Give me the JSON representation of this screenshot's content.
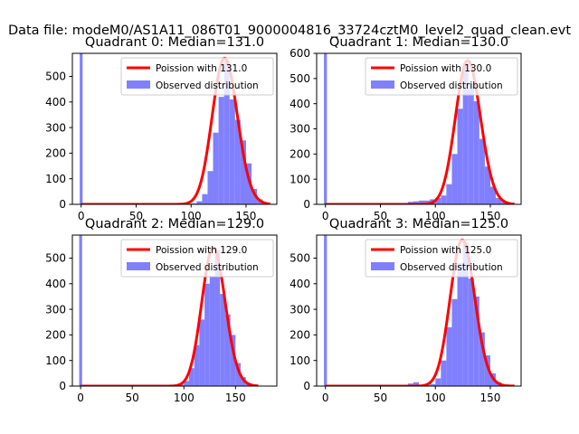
{
  "figure": {
    "suptitle": "Data file: modeM0/AS1A11_086T01_9000004816_33724cztM0_level2_quad_clean.evt",
    "hist_color": "#8080ff",
    "curve_color": "#ff0000",
    "legend_curve_prefix": "Poission with",
    "legend_hist_label": "Observed distribution"
  },
  "chart_data": [
    {
      "type": "bar",
      "title": "Quadrant 0: Median=131.0",
      "median": 131.0,
      "legend": [
        "Poission with 131.0",
        "Observed distribution"
      ],
      "xlim": [
        -8,
        178
      ],
      "ylim": [
        0,
        590
      ],
      "xticks": [
        0,
        50,
        100,
        150
      ],
      "yticks": [
        0,
        100,
        200,
        300,
        400,
        500
      ],
      "zero_spike": {
        "x": 0,
        "value": 590
      },
      "hist_bins": [
        [
          80,
          2
        ],
        [
          85,
          2
        ],
        [
          95,
          2
        ],
        [
          100,
          4
        ],
        [
          105,
          12
        ],
        [
          110,
          40
        ],
        [
          115,
          130
        ],
        [
          120,
          280
        ],
        [
          125,
          420
        ],
        [
          130,
          560
        ],
        [
          135,
          410
        ],
        [
          140,
          330
        ],
        [
          145,
          250
        ],
        [
          150,
          160
        ],
        [
          155,
          60
        ],
        [
          160,
          20
        ],
        [
          165,
          6
        ],
        [
          170,
          2
        ]
      ]
    },
    {
      "type": "bar",
      "title": "Quadrant 1: Median=130.0",
      "median": 130.0,
      "legend": [
        "Poission with 130.0",
        "Observed distribution"
      ],
      "xlim": [
        -8,
        178
      ],
      "ylim": [
        0,
        600
      ],
      "xticks": [
        0,
        50,
        100,
        150
      ],
      "yticks": [
        0,
        100,
        200,
        300,
        400,
        500,
        600
      ],
      "zero_spike": {
        "x": 0,
        "value": 600
      },
      "hist_bins": [
        [
          75,
          10
        ],
        [
          80,
          12
        ],
        [
          85,
          15
        ],
        [
          90,
          15
        ],
        [
          95,
          20
        ],
        [
          100,
          25
        ],
        [
          105,
          35
        ],
        [
          110,
          80
        ],
        [
          115,
          200
        ],
        [
          120,
          380
        ],
        [
          125,
          560
        ],
        [
          130,
          480
        ],
        [
          135,
          410
        ],
        [
          140,
          260
        ],
        [
          145,
          150
        ],
        [
          150,
          70
        ],
        [
          155,
          25
        ],
        [
          160,
          10
        ],
        [
          165,
          4
        ]
      ]
    },
    {
      "type": "bar",
      "title": "Quadrant 2: Median=129.0",
      "median": 129.0,
      "legend": [
        "Poission with 129.0",
        "Observed distribution"
      ],
      "xlim": [
        -8,
        190
      ],
      "ylim": [
        0,
        590
      ],
      "xticks": [
        0,
        50,
        100,
        150
      ],
      "yticks": [
        0,
        100,
        200,
        300,
        400,
        500
      ],
      "zero_spike": {
        "x": 0,
        "value": 590
      },
      "hist_bins": [
        [
          90,
          4
        ],
        [
          95,
          6
        ],
        [
          100,
          20
        ],
        [
          105,
          70
        ],
        [
          110,
          160
        ],
        [
          115,
          260
        ],
        [
          120,
          400
        ],
        [
          125,
          430
        ],
        [
          130,
          530
        ],
        [
          135,
          360
        ],
        [
          140,
          280
        ],
        [
          145,
          200
        ],
        [
          150,
          90
        ],
        [
          155,
          35
        ],
        [
          160,
          12
        ],
        [
          165,
          4
        ]
      ]
    },
    {
      "type": "bar",
      "title": "Quadrant 3: Median=125.0",
      "median": 125.0,
      "legend": [
        "Poission with 125.0",
        "Observed distribution"
      ],
      "xlim": [
        -8,
        178
      ],
      "ylim": [
        0,
        590
      ],
      "xticks": [
        0,
        50,
        100,
        150
      ],
      "yticks": [
        0,
        100,
        200,
        300,
        400,
        500
      ],
      "zero_spike": {
        "x": 0,
        "value": 590
      },
      "hist_bins": [
        [
          75,
          10
        ],
        [
          80,
          15
        ],
        [
          85,
          4
        ],
        [
          90,
          4
        ],
        [
          95,
          8
        ],
        [
          100,
          30
        ],
        [
          105,
          100
        ],
        [
          110,
          230
        ],
        [
          115,
          340
        ],
        [
          120,
          480
        ],
        [
          125,
          560
        ],
        [
          130,
          420
        ],
        [
          135,
          350
        ],
        [
          140,
          210
        ],
        [
          145,
          120
        ],
        [
          150,
          50
        ],
        [
          155,
          15
        ],
        [
          160,
          5
        ],
        [
          165,
          2
        ]
      ]
    }
  ]
}
